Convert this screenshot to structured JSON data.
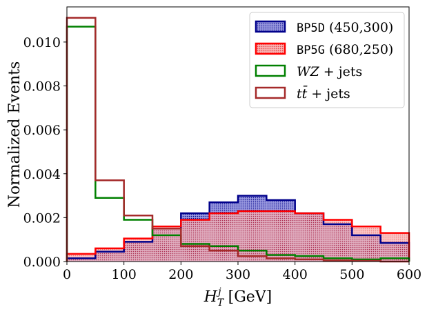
{
  "chart_data": {
    "type": "histogram",
    "xlabel": "H_T^j [GeV]",
    "xlabel_parts": {
      "main": "H",
      "sub": "T",
      "sup": "j",
      "unit": "[GeV]"
    },
    "ylabel": "Normalized Events",
    "xlim": [
      0,
      600
    ],
    "ylim": [
      0,
      0.0116
    ],
    "xticks": [
      0,
      100,
      200,
      300,
      400,
      500,
      600
    ],
    "xtick_labels": [
      "0",
      "100",
      "200",
      "300",
      "400",
      "500",
      "600"
    ],
    "yticks": [
      0.0,
      0.002,
      0.004,
      0.006,
      0.008,
      0.01
    ],
    "ytick_labels": [
      "0.000",
      "0.002",
      "0.004",
      "0.006",
      "0.008",
      "0.010"
    ],
    "bin_edges": [
      0,
      50,
      100,
      150,
      200,
      250,
      300,
      350,
      400,
      450,
      500,
      550,
      600
    ],
    "legend_position": "top-right",
    "series": [
      {
        "key": "bp5d",
        "name_code": "BP5D",
        "name_rest": "(450,300)",
        "style": "filled-hatched",
        "edge_color": "#00008b",
        "fill_color": "#8c8cd6",
        "values": [
          0.00015,
          0.00045,
          0.0009,
          0.0015,
          0.0022,
          0.0027,
          0.003,
          0.0028,
          0.0022,
          0.0017,
          0.0012,
          0.00085
        ]
      },
      {
        "key": "bp5g",
        "name_code": "BP5G",
        "name_rest": "(680,250)",
        "style": "filled-hatched",
        "edge_color": "#ff0000",
        "fill_color": "#f6a6a6",
        "values": [
          0.00035,
          0.0006,
          0.00105,
          0.0016,
          0.0019,
          0.0022,
          0.0023,
          0.0023,
          0.0022,
          0.0019,
          0.0016,
          0.0013
        ]
      },
      {
        "key": "wz",
        "name_math": "WZ",
        "name_rest": "+ jets",
        "style": "step",
        "edge_color": "#008000",
        "values": [
          0.0107,
          0.0029,
          0.0019,
          0.0012,
          0.0008,
          0.0007,
          0.0005,
          0.0003,
          0.00025,
          0.00015,
          0.0001,
          0.00015
        ]
      },
      {
        "key": "tt",
        "name_math": "tt̄",
        "name_rest": "+ jets",
        "style": "step",
        "edge_color": "#a52a2a",
        "values": [
          0.0111,
          0.0037,
          0.0021,
          0.0015,
          0.0007,
          0.0005,
          0.00025,
          0.00015,
          0.0001,
          5e-05,
          3e-05,
          0.0
        ]
      }
    ]
  }
}
